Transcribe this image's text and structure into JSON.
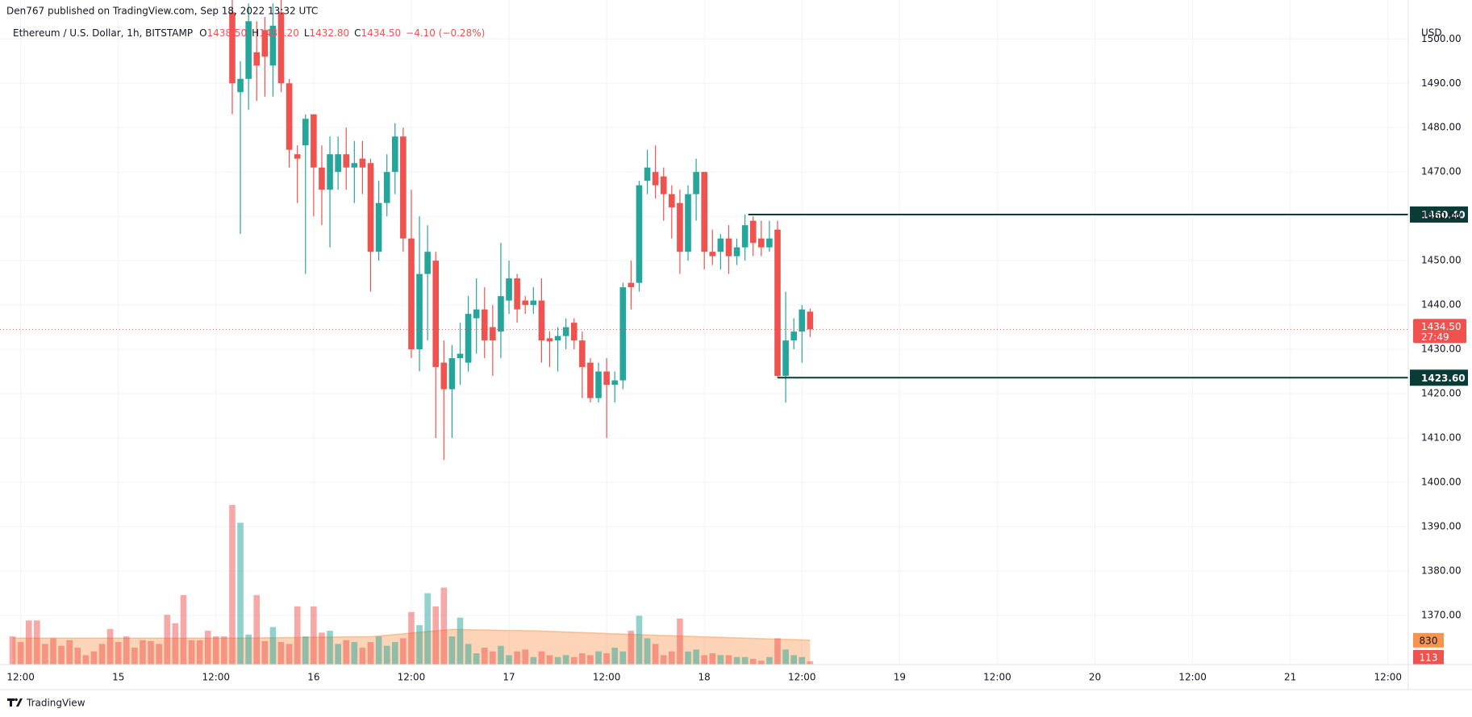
{
  "header": {
    "publisher": "Den767 published on TradingView.com, Sep 18, 2022 13:32 UTC"
  },
  "footer": {
    "brand": "TradingView"
  },
  "chart_data": {
    "type": "candlestick",
    "symbol": "Ethereum / U.S. Dollar, 1h, BITSTAMP",
    "ohlc": [
      {
        "key": "O",
        "value": "1438.50"
      },
      {
        "key": "H",
        "value": "1439.20"
      },
      {
        "key": "L",
        "value": "1432.80"
      },
      {
        "key": "C",
        "value": "1434.50"
      }
    ],
    "change": "−4.10 (−0.28%)",
    "currency": "USD",
    "up_color": "#26a69a",
    "down_color": "#ef5350",
    "grid": true,
    "xlim": [
      9.46,
      182.5
    ],
    "xticks": [
      {
        "value": 12,
        "label": "12:00"
      },
      {
        "value": 24,
        "label": "15"
      },
      {
        "value": 36,
        "label": "12:00"
      },
      {
        "value": 48,
        "label": "16"
      },
      {
        "value": 60,
        "label": "12:00"
      },
      {
        "value": 72,
        "label": "17"
      },
      {
        "value": 84,
        "label": "12:00"
      },
      {
        "value": 96,
        "label": "18"
      },
      {
        "value": 108,
        "label": "12:00"
      },
      {
        "value": 120,
        "label": "19"
      },
      {
        "value": 132,
        "label": "12:00"
      },
      {
        "value": 144,
        "label": "20"
      },
      {
        "value": 156,
        "label": "12:00"
      },
      {
        "value": 168,
        "label": "21"
      },
      {
        "value": 180,
        "label": "12:00"
      }
    ],
    "ylim": [
      1358.9,
      1504.6
    ],
    "yticks": [
      {
        "value": 1370,
        "label": "1370.00"
      },
      {
        "value": 1380,
        "label": "1380.00"
      },
      {
        "value": 1390,
        "label": "1390.00"
      },
      {
        "value": 1400,
        "label": "1400.00"
      },
      {
        "value": 1410,
        "label": "1410.00"
      },
      {
        "value": 1420,
        "label": "1420.00"
      },
      {
        "value": 1430,
        "label": "1430.00"
      },
      {
        "value": 1440,
        "label": "1440.00"
      },
      {
        "value": 1450,
        "label": "1450.00"
      },
      {
        "value": 1460,
        "label": "1460.00"
      },
      {
        "value": 1470,
        "label": "1470.00"
      },
      {
        "value": 1480,
        "label": "1480.00"
      },
      {
        "value": 1490,
        "label": "1490.00"
      },
      {
        "value": 1500,
        "label": "1500.00"
      }
    ],
    "candles": {
      "x": [
        38,
        39,
        40,
        41,
        42,
        43,
        44,
        45,
        46,
        47,
        48,
        49,
        50,
        51,
        52,
        53,
        54,
        55,
        56,
        57,
        58,
        59,
        60,
        61,
        62,
        63,
        64,
        65,
        66,
        67,
        68,
        69,
        70,
        71,
        72,
        73,
        74,
        75,
        76,
        77,
        78,
        79,
        80,
        81,
        82,
        83,
        84,
        85,
        86,
        87,
        88,
        89,
        90,
        91,
        92,
        93,
        94,
        95,
        96,
        97,
        98,
        99,
        100,
        101,
        102,
        103,
        104,
        105,
        106,
        107,
        108,
        109
      ],
      "open": [
        1506,
        1488,
        1491,
        1497,
        1502,
        1494,
        1506,
        1490,
        1474,
        1476,
        1483,
        1471,
        1466,
        1470,
        1474,
        1471,
        1473,
        1472,
        1452,
        1463,
        1470,
        1478,
        1455,
        1430,
        1447,
        1450,
        1427,
        1421,
        1428,
        1427,
        1437,
        1439,
        1435,
        1434,
        1441,
        1446,
        1441,
        1440,
        1441,
        1432.5,
        1432,
        1433,
        1436,
        1432,
        1427,
        1419,
        1425,
        1422,
        1423,
        1445,
        1445,
        1468,
        1470,
        1469,
        1465,
        1463,
        1452,
        1465,
        1470,
        1452,
        1452,
        1455,
        1451,
        1453,
        1459,
        1455,
        1453,
        1457,
        1424,
        1432,
        1434,
        1438.5
      ],
      "high": [
        1510,
        1495,
        1508,
        1504,
        1505,
        1508,
        1510,
        1491,
        1476,
        1483,
        1483,
        1476,
        1478,
        1478,
        1480,
        1477,
        1477,
        1473,
        1468,
        1474,
        1481,
        1480,
        1466,
        1460,
        1458,
        1452,
        1432,
        1431,
        1436,
        1442,
        1446,
        1444,
        1440,
        1454,
        1450,
        1447,
        1442,
        1444,
        1446,
        1434,
        1435,
        1437,
        1437,
        1434,
        1428,
        1427,
        1428,
        1425,
        1445,
        1450,
        1468,
        1475,
        1476,
        1471,
        1467,
        1466,
        1467,
        1473,
        1470,
        1457,
        1456,
        1458,
        1455,
        1460.4,
        1460,
        1459,
        1459,
        1459,
        1443,
        1437,
        1440,
        1439.2
      ],
      "low": [
        1483,
        1456,
        1484,
        1486,
        1487,
        1487,
        1488,
        1471,
        1463,
        1447,
        1460,
        1458,
        1453,
        1466,
        1466,
        1463,
        1465,
        1443,
        1450,
        1460,
        1465,
        1452,
        1428,
        1425,
        1432,
        1410,
        1405,
        1410,
        1422,
        1425,
        1429,
        1428,
        1424,
        1428,
        1438,
        1436,
        1438,
        1438,
        1427,
        1426,
        1425,
        1430,
        1430,
        1419,
        1418,
        1418,
        1410,
        1418,
        1421,
        1439,
        1443,
        1465,
        1464,
        1459,
        1455,
        1447,
        1450,
        1459,
        1448,
        1449,
        1448,
        1447,
        1449,
        1450,
        1451,
        1451,
        1452,
        1423.6,
        1418,
        1430,
        1427,
        1432.8
      ],
      "close": [
        1490,
        1491,
        1504,
        1494,
        1496,
        1503,
        1490,
        1475,
        1473,
        1482,
        1471,
        1466,
        1474,
        1474,
        1471,
        1472,
        1471,
        1452,
        1463,
        1470,
        1478,
        1455,
        1430,
        1447,
        1452,
        1426,
        1421,
        1428,
        1429,
        1438,
        1439,
        1432,
        1432,
        1442,
        1446,
        1439,
        1440,
        1441,
        1432,
        1431.8,
        1433,
        1435,
        1432,
        1426,
        1419,
        1425,
        1422,
        1423,
        1444,
        1444,
        1467,
        1471,
        1467,
        1465,
        1462,
        1452,
        1465,
        1470,
        1452,
        1451,
        1455,
        1451,
        1453,
        1458,
        1454,
        1453,
        1455,
        1424,
        1432,
        1434,
        1439,
        1434.5
      ]
    },
    "volume": {
      "ylim": [
        0,
        22016
      ],
      "x": [
        11,
        12,
        13,
        14,
        15,
        16,
        17,
        18,
        19,
        20,
        21,
        22,
        23,
        24,
        25,
        26,
        27,
        28,
        29,
        30,
        31,
        32,
        33,
        34,
        35,
        36,
        37,
        38,
        39,
        40,
        41,
        42,
        43,
        44,
        45,
        46,
        47,
        48,
        49,
        50,
        51,
        52,
        53,
        54,
        55,
        56,
        57,
        58,
        59,
        60,
        61,
        62,
        63,
        64,
        65,
        66,
        67,
        68,
        69,
        70,
        71,
        72,
        73,
        74,
        75,
        76,
        77,
        78,
        79,
        80,
        81,
        82,
        83,
        84,
        85,
        86,
        87,
        88,
        89,
        90,
        91,
        92,
        93,
        94,
        95,
        96,
        97,
        98,
        99,
        100,
        101,
        102,
        103,
        104,
        105,
        106,
        107,
        108,
        109
      ],
      "values": [
        960,
        768,
        1504,
        1504,
        704,
        896,
        640,
        832,
        576,
        320,
        448,
        704,
        1216,
        768,
        960,
        576,
        832,
        800,
        704,
        1696,
        1408,
        2368,
        832,
        832,
        1152,
        960,
        960,
        5440,
        4832,
        1024,
        2368,
        800,
        1280,
        768,
        704,
        1984,
        960,
        1984,
        1088,
        1152,
        704,
        832,
        768,
        576,
        768,
        960,
        640,
        768,
        896,
        1792,
        1344,
        2432,
        1984,
        2624,
        960,
        1600,
        704,
        384,
        576,
        448,
        640,
        320,
        448,
        512,
        256,
        448,
        320,
        256,
        320,
        256,
        384,
        320,
        448,
        384,
        576,
        448,
        1152,
        1664,
        896,
        704,
        320,
        448,
        1568,
        448,
        512,
        320,
        384,
        320,
        320,
        256,
        256,
        192,
        128,
        256,
        896,
        512,
        320,
        256,
        113
      ]
    },
    "volume_ma": {
      "x": [
        11,
        38,
        55,
        65,
        75,
        90,
        109
      ],
      "values": [
        900,
        900,
        950,
        1200,
        1150,
        1000,
        830
      ],
      "color": "#f7934c"
    },
    "levels": [
      {
        "value": 1460.4,
        "label": "1460.40",
        "from": 101.4,
        "color": "#0b3b36"
      },
      {
        "value": 1423.6,
        "label": "1423.60",
        "from": 105,
        "color": "#0b3b36"
      }
    ],
    "last_price": {
      "value": 1434.5,
      "label": "1434.50",
      "countdown": "27:49"
    }
  }
}
